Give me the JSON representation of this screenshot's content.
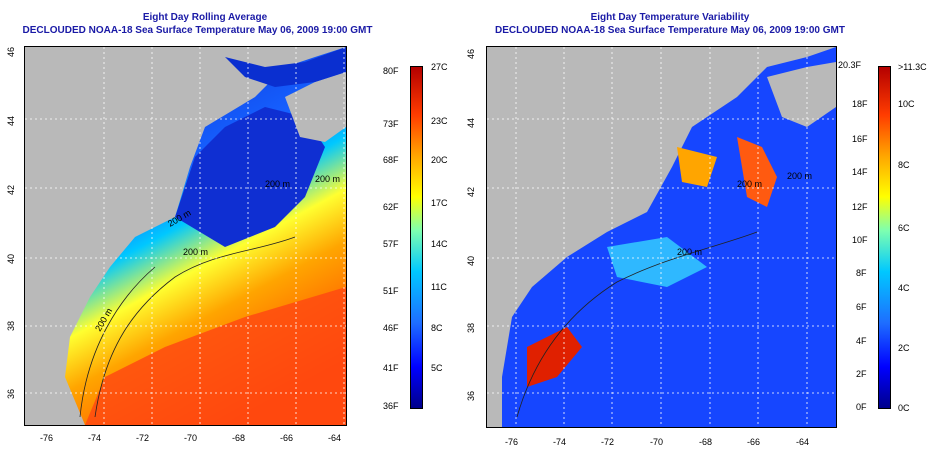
{
  "left": {
    "title_line1": "Eight Day Rolling Average",
    "title_line2": "DECLOUDED NOAA-18 Sea Surface Temperature May 06, 2009 19:00 GMT",
    "x_ticks": [
      "-76",
      "-74",
      "-72",
      "-70",
      "-68",
      "-66",
      "-64"
    ],
    "y_ticks": [
      "36",
      "38",
      "40",
      "42",
      "44",
      "46"
    ],
    "contour_labels": [
      "200 m",
      "200 m",
      "200 m",
      "200 m",
      "200 m"
    ],
    "colorbar_f": [
      "80F",
      "73F",
      "68F",
      "62F",
      "57F",
      "51F",
      "46F",
      "41F",
      "36F"
    ],
    "colorbar_c": [
      "27C",
      "23C",
      "20C",
      "17C",
      "14C",
      "11C",
      "8C",
      "5C"
    ]
  },
  "right": {
    "title_line1": "Eight Day Temperature Variability",
    "title_line2": "DECLOUDED NOAA-18 Sea Surface Temperature May 06, 2009 19:00 GMT",
    "x_ticks": [
      "-76",
      "-74",
      "-72",
      "-70",
      "-68",
      "-66",
      "-64"
    ],
    "y_ticks": [
      "36",
      "38",
      "40",
      "42",
      "44",
      "46"
    ],
    "contour_labels": [
      "200 m",
      "200 m",
      "200 m"
    ],
    "colorbar_f": [
      "20.3F",
      "18F",
      "16F",
      "14F",
      "12F",
      "10F",
      "8F",
      "6F",
      "4F",
      "2F",
      "0F"
    ],
    "colorbar_c": [
      ">11.3C",
      "10C",
      "8C",
      "6C",
      "4C",
      "2C",
      "0C"
    ]
  },
  "colors": {
    "land": "#b9b9b9",
    "title": "#1a1aa6",
    "scale": [
      "#00008b",
      "#0000ff",
      "#1e6eff",
      "#00c8ff",
      "#7dffb0",
      "#ffff00",
      "#ffa500",
      "#ff3c00",
      "#b40000"
    ]
  }
}
